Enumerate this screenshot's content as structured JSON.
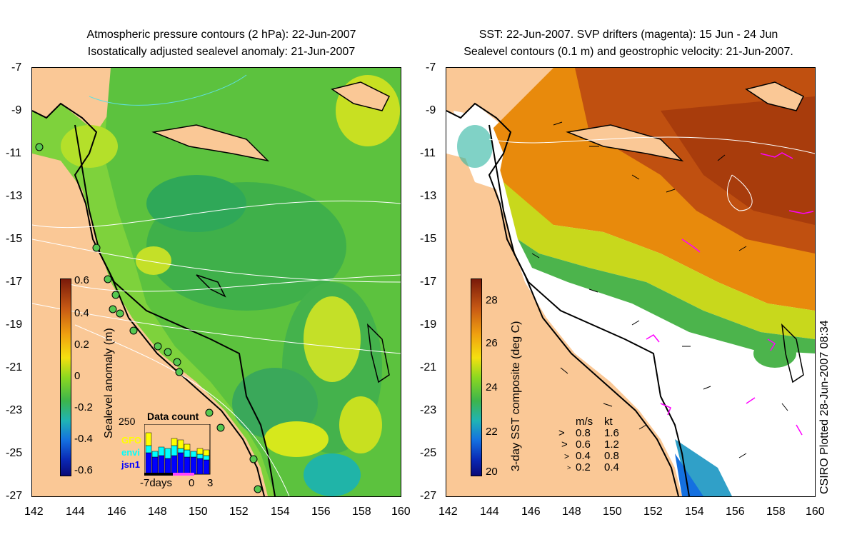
{
  "left": {
    "title_line1": "Atmospheric pressure contours (2 hPa): 22-Jun-2007",
    "title_line2": "Isostatically adjusted sealevel anomaly: 21-Jun-2007",
    "colorbar_label": "Sealevel anomaly (m)",
    "colorbar_ticks": [
      "0.6",
      "0.4",
      "0.2",
      "0",
      "-0.2",
      "-0.4",
      "-0.6"
    ],
    "data_count": {
      "title": "Data count",
      "max_label": "250",
      "sat1": "GFO",
      "sat2": "envi",
      "sat3": "jsn1",
      "sat1_color": "#ffff00",
      "sat2_color": "#00ffff",
      "sat3_color": "#0000ff",
      "axis_left": "-7days",
      "axis_mid": "0",
      "axis_right": "3"
    }
  },
  "right": {
    "title_line1": "SST: 22-Jun-2007. SVP drifters (magenta): 15 Jun - 24 Jun",
    "title_line2": "Sealevel contours (0.1 m) and geostrophic velocity: 21-Jun-2007.",
    "colorbar_label": "3-day SST composite (deg C)",
    "colorbar_ticks": [
      "28",
      "26",
      "24",
      "22",
      "20"
    ],
    "velocity_legend": {
      "header_ms": "m/s",
      "header_kt": "kt",
      "rows": [
        {
          "ms": "0.8",
          "kt": "1.6"
        },
        {
          "ms": "0.6",
          "kt": "1.2"
        },
        {
          "ms": "0.4",
          "kt": "0.8"
        },
        {
          "ms": "0.2",
          "kt": "0.4"
        }
      ]
    }
  },
  "axes": {
    "lat_ticks": [
      "-7",
      "-9",
      "-11",
      "-13",
      "-15",
      "-17",
      "-19",
      "-21",
      "-23",
      "-25",
      "-27"
    ],
    "lon_ticks": [
      "142",
      "144",
      "146",
      "148",
      "150",
      "152",
      "154",
      "156",
      "158",
      "160"
    ]
  },
  "credit": "CSIRO Plotted 28-Jun-2007 08:34",
  "colors": {
    "land": "#fac896",
    "ocean_green": "#6fd03a",
    "sst_warm": "#b84a10",
    "sst_mid": "#e8900c"
  }
}
